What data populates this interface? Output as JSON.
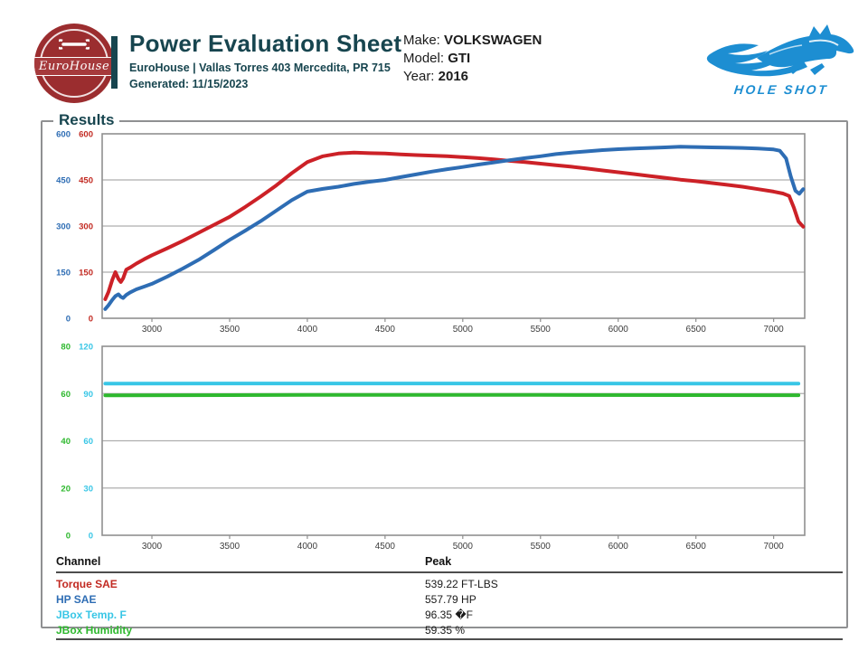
{
  "header": {
    "logo": {
      "brand": "EuroHouse",
      "icon": "wrench-icon",
      "circle_color": "#9b2d2f"
    },
    "accent_color": "#17454f",
    "title": "Power Evaluation Sheet",
    "subtitle": "EuroHouse | Vallas Torres 403 Mercedita, PR 715",
    "generated": "Generated: 11/15/2023",
    "vehicle": {
      "make_label": "Make:",
      "make": "VOLKSWAGEN",
      "model_label": "Model:",
      "model": "GTI",
      "year_label": "Year:",
      "year": "2016"
    },
    "holeshot": {
      "name": "HOLE SHOT",
      "icon": "horse-flame-icon",
      "color": "#1d8ed2"
    }
  },
  "results": {
    "legend": "Results"
  },
  "chart_data": [
    {
      "type": "line",
      "title": "Dyno run: torque and horsepower vs engine RPM",
      "x": {
        "min": 2680,
        "max": 7200,
        "ticks": [
          3000,
          3500,
          4000,
          4500,
          5000,
          5500,
          6000,
          6500,
          7000
        ]
      },
      "grid": true,
      "legend_position": "none",
      "y_axes": [
        {
          "name": "HP SAE",
          "color": "#2e6db4",
          "min": 0,
          "max": 600,
          "ticks": [
            0,
            150,
            300,
            450,
            600
          ]
        },
        {
          "name": "Torque SAE",
          "color": "#c22a22",
          "min": 0,
          "max": 600,
          "ticks": [
            0,
            150,
            300,
            450,
            600
          ]
        }
      ],
      "series": [
        {
          "name": "Torque SAE",
          "color": "#cc2127",
          "axis": 1,
          "peak": 539.22,
          "points": [
            [
              2700,
              62
            ],
            [
              2720,
              85
            ],
            [
              2745,
              125
            ],
            [
              2765,
              150
            ],
            [
              2785,
              128
            ],
            [
              2800,
              118
            ],
            [
              2815,
              130
            ],
            [
              2835,
              158
            ],
            [
              2860,
              165
            ],
            [
              2900,
              178
            ],
            [
              2950,
              192
            ],
            [
              3000,
              205
            ],
            [
              3100,
              228
            ],
            [
              3200,
              252
            ],
            [
              3300,
              278
            ],
            [
              3400,
              304
            ],
            [
              3500,
              330
            ],
            [
              3600,
              362
            ],
            [
              3700,
              396
            ],
            [
              3800,
              432
            ],
            [
              3900,
              472
            ],
            [
              4000,
              508
            ],
            [
              4100,
              527
            ],
            [
              4200,
              536
            ],
            [
              4300,
              539
            ],
            [
              4400,
              537
            ],
            [
              4500,
              536
            ],
            [
              4600,
              533
            ],
            [
              4700,
              531
            ],
            [
              4800,
              529
            ],
            [
              4900,
              527
            ],
            [
              5000,
              524
            ],
            [
              5100,
              521
            ],
            [
              5200,
              517
            ],
            [
              5300,
              512
            ],
            [
              5400,
              508
            ],
            [
              5500,
              503
            ],
            [
              5600,
              498
            ],
            [
              5700,
              493
            ],
            [
              5800,
              487
            ],
            [
              5900,
              481
            ],
            [
              6000,
              475
            ],
            [
              6100,
              469
            ],
            [
              6200,
              463
            ],
            [
              6300,
              457
            ],
            [
              6400,
              451
            ],
            [
              6500,
              446
            ],
            [
              6600,
              440
            ],
            [
              6700,
              434
            ],
            [
              6800,
              428
            ],
            [
              6900,
              420
            ],
            [
              7000,
              412
            ],
            [
              7060,
              406
            ],
            [
              7100,
              398
            ],
            [
              7130,
              360
            ],
            [
              7160,
              315
            ],
            [
              7190,
              298
            ]
          ]
        },
        {
          "name": "HP SAE",
          "color": "#2e6db4",
          "axis": 0,
          "peak": 557.79,
          "points": [
            [
              2700,
              30
            ],
            [
              2720,
              42
            ],
            [
              2745,
              60
            ],
            [
              2765,
              72
            ],
            [
              2785,
              78
            ],
            [
              2800,
              70
            ],
            [
              2815,
              66
            ],
            [
              2835,
              76
            ],
            [
              2860,
              84
            ],
            [
              2900,
              94
            ],
            [
              2950,
              103
            ],
            [
              3000,
              112
            ],
            [
              3100,
              136
            ],
            [
              3200,
              162
            ],
            [
              3300,
              190
            ],
            [
              3400,
              222
            ],
            [
              3500,
              255
            ],
            [
              3600,
              285
            ],
            [
              3700,
              316
            ],
            [
              3800,
              350
            ],
            [
              3900,
              384
            ],
            [
              4000,
              412
            ],
            [
              4100,
              421
            ],
            [
              4200,
              428
            ],
            [
              4300,
              437
            ],
            [
              4400,
              444
            ],
            [
              4500,
              450
            ],
            [
              4600,
              459
            ],
            [
              4700,
              468
            ],
            [
              4800,
              477
            ],
            [
              4900,
              485
            ],
            [
              5000,
              492
            ],
            [
              5100,
              500
            ],
            [
              5200,
              507
            ],
            [
              5300,
              514
            ],
            [
              5400,
              521
            ],
            [
              5500,
              527
            ],
            [
              5600,
              534
            ],
            [
              5700,
              539
            ],
            [
              5800,
              543
            ],
            [
              5900,
              547
            ],
            [
              6000,
              550
            ],
            [
              6100,
              552
            ],
            [
              6200,
              554
            ],
            [
              6300,
              556
            ],
            [
              6400,
              558
            ],
            [
              6500,
              557
            ],
            [
              6600,
              556
            ],
            [
              6700,
              555
            ],
            [
              6800,
              554
            ],
            [
              6900,
              552
            ],
            [
              7000,
              549
            ],
            [
              7040,
              545
            ],
            [
              7080,
              520
            ],
            [
              7110,
              462
            ],
            [
              7140,
              415
            ],
            [
              7165,
              405
            ],
            [
              7190,
              420
            ]
          ]
        }
      ]
    },
    {
      "type": "line",
      "title": "Ambient conditions vs engine RPM",
      "x": {
        "min": 2680,
        "max": 7200,
        "ticks": [
          3000,
          3500,
          4000,
          4500,
          5000,
          5500,
          6000,
          6500,
          7000
        ]
      },
      "grid": true,
      "legend_position": "none",
      "y_axes": [
        {
          "name": "JBox Humidity",
          "color": "#2eb82e",
          "min": 0,
          "max": 80,
          "ticks": [
            0,
            20,
            40,
            60,
            80
          ]
        },
        {
          "name": "JBox Temp. F",
          "color": "#38c6e6",
          "min": 0,
          "max": 120,
          "ticks": [
            0,
            30,
            60,
            90,
            120
          ]
        }
      ],
      "series": [
        {
          "name": "JBox Temp. F",
          "color": "#38c6e6",
          "axis": 1,
          "peak": 96.35,
          "points": [
            [
              2700,
              96.3
            ],
            [
              4000,
              96.4
            ],
            [
              5500,
              96.4
            ],
            [
              7160,
              96.3
            ]
          ]
        },
        {
          "name": "JBox Humidity",
          "color": "#2eb82e",
          "axis": 0,
          "peak": 59.35,
          "points": [
            [
              2700,
              59.2
            ],
            [
              4000,
              59.4
            ],
            [
              5500,
              59.4
            ],
            [
              7160,
              59.3
            ]
          ]
        }
      ]
    }
  ],
  "table": {
    "headers": [
      "Channel",
      "Peak"
    ],
    "rows": [
      {
        "channel": "Torque SAE",
        "peak": "539.22 FT-LBS",
        "color": "#c22a22"
      },
      {
        "channel": "HP SAE",
        "peak": "557.79 HP",
        "color": "#2e6db4"
      },
      {
        "channel": "JBox Temp. F",
        "peak": "96.35 �F",
        "color": "#38c6e6"
      },
      {
        "channel": "JBox Humidity",
        "peak": "59.35 %",
        "color": "#2eb82e"
      }
    ]
  }
}
